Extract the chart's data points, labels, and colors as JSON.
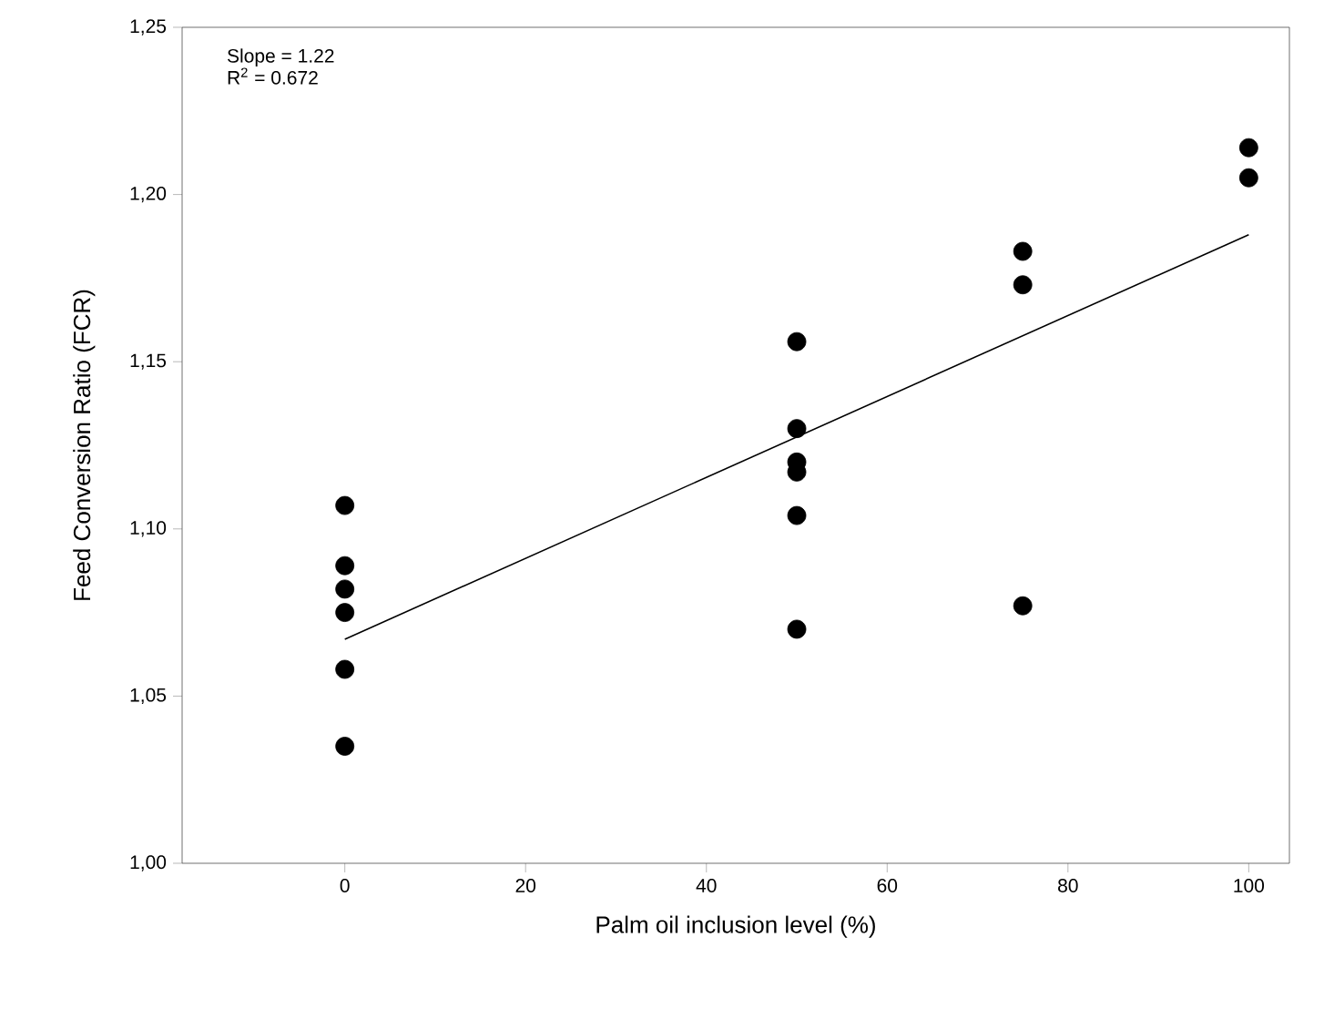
{
  "chart_data": {
    "type": "scatter",
    "xlabel": "Palm oil inclusion level (%)",
    "ylabel": "Feed Conversion Ratio (FCR)",
    "annotations": [
      "Slope = 1.22",
      "R$^{2}$ = 0.672"
    ],
    "series": [
      {
        "color": "#000000",
        "marker": "circle",
        "x": [
          0,
          0,
          0,
          0,
          0,
          0,
          50,
          50,
          50,
          50,
          50,
          50,
          75,
          75,
          75,
          100,
          100
        ],
        "values": [
          1.107,
          1.089,
          1.082,
          1.075,
          1.058,
          1.035,
          1.156,
          1.13,
          1.12,
          1.117,
          1.104,
          1.07,
          1.183,
          1.173,
          1.077,
          1.214,
          1.205
        ]
      },
      {
        "type": "line",
        "color": "#000000",
        "marker": "none",
        "x": [
          0,
          100
        ],
        "values": [
          1.067,
          1.188
        ]
      }
    ],
    "xlim": [
      -18,
      104.5
    ],
    "ylim": [
      1.0,
      1.25
    ],
    "xticks": [
      0,
      20,
      40,
      60,
      80,
      100
    ],
    "yticks": [
      {
        "value": 1.0,
        "label": "1,00"
      },
      {
        "value": 1.05,
        "label": "1,05"
      },
      {
        "value": 1.1,
        "label": "1,10"
      },
      {
        "value": 1.15,
        "label": "1,15"
      },
      {
        "value": 1.2,
        "label": "1,20"
      },
      {
        "value": 1.25,
        "label": "1,25"
      }
    ],
    "grid": false
  }
}
